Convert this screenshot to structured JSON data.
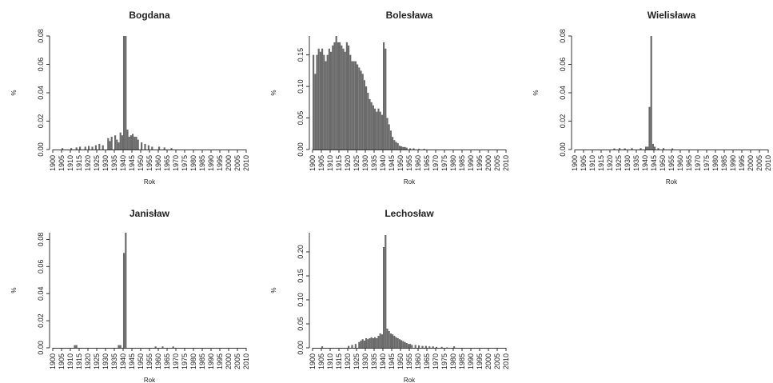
{
  "charts": [
    {
      "type": "bar",
      "title": "Bogdana",
      "xlabel": "Rok",
      "ylabel": "%",
      "xlim": [
        1900,
        2010
      ],
      "ylim": [
        0,
        0.08
      ],
      "yticks": [
        "0.00",
        "0.02",
        "0.04",
        "0.06",
        "0.08"
      ],
      "xticks": [
        "1900",
        "1905",
        "1910",
        "1915",
        "1920",
        "1925",
        "1930",
        "1935",
        "1940",
        "1945",
        "1950",
        "1955",
        "1960",
        "1965",
        "1970",
        "1975",
        "1980",
        "1985",
        "1990",
        "1995",
        "2000",
        "2005",
        "2010"
      ],
      "bar_color": "#6b6b6b",
      "series": [
        {
          "x": 1905,
          "y": 0.001
        },
        {
          "x": 1910,
          "y": 0.001
        },
        {
          "x": 1913,
          "y": 0.0015
        },
        {
          "x": 1915,
          "y": 0.002
        },
        {
          "x": 1918,
          "y": 0.002
        },
        {
          "x": 1920,
          "y": 0.0025
        },
        {
          "x": 1922,
          "y": 0.002
        },
        {
          "x": 1924,
          "y": 0.003
        },
        {
          "x": 1926,
          "y": 0.004
        },
        {
          "x": 1928,
          "y": 0.003
        },
        {
          "x": 1931,
          "y": 0.008
        },
        {
          "x": 1932,
          "y": 0.006
        },
        {
          "x": 1933,
          "y": 0.009
        },
        {
          "x": 1935,
          "y": 0.01
        },
        {
          "x": 1936,
          "y": 0.007
        },
        {
          "x": 1937,
          "y": 0.005
        },
        {
          "x": 1938,
          "y": 0.012
        },
        {
          "x": 1939,
          "y": 0.01
        },
        {
          "x": 1940,
          "y": 0.09
        },
        {
          "x": 1941,
          "y": 0.08
        },
        {
          "x": 1942,
          "y": 0.014
        },
        {
          "x": 1943,
          "y": 0.009
        },
        {
          "x": 1944,
          "y": 0.01
        },
        {
          "x": 1945,
          "y": 0.011
        },
        {
          "x": 1946,
          "y": 0.009
        },
        {
          "x": 1947,
          "y": 0.009
        },
        {
          "x": 1948,
          "y": 0.007
        },
        {
          "x": 1950,
          "y": 0.005
        },
        {
          "x": 1952,
          "y": 0.004
        },
        {
          "x": 1954,
          "y": 0.003
        },
        {
          "x": 1956,
          "y": 0.002
        },
        {
          "x": 1960,
          "y": 0.002
        },
        {
          "x": 1963,
          "y": 0.0015
        },
        {
          "x": 1967,
          "y": 0.001
        }
      ]
    },
    {
      "type": "bar",
      "title": "Bolesława",
      "xlabel": "Rok",
      "ylabel": "%",
      "xlim": [
        1900,
        2010
      ],
      "ylim": [
        0,
        0.18
      ],
      "yticks": [
        "0.00",
        "0.05",
        "0.10",
        "0.15"
      ],
      "xticks": [
        "1900",
        "1905",
        "1910",
        "1915",
        "1920",
        "1925",
        "1930",
        "1935",
        "1940",
        "1945",
        "1950",
        "1955",
        "1960",
        "1965",
        "1970",
        "1975",
        "1980",
        "1985",
        "1990",
        "1995",
        "2000",
        "2005",
        "2010"
      ],
      "bar_color": "#6b6b6b",
      "series": [
        {
          "x": 1900,
          "y": 0.15
        },
        {
          "x": 1901,
          "y": 0.12
        },
        {
          "x": 1902,
          "y": 0.15
        },
        {
          "x": 1903,
          "y": 0.16
        },
        {
          "x": 1904,
          "y": 0.155
        },
        {
          "x": 1905,
          "y": 0.16
        },
        {
          "x": 1906,
          "y": 0.15
        },
        {
          "x": 1907,
          "y": 0.14
        },
        {
          "x": 1908,
          "y": 0.15
        },
        {
          "x": 1909,
          "y": 0.16
        },
        {
          "x": 1910,
          "y": 0.155
        },
        {
          "x": 1911,
          "y": 0.165
        },
        {
          "x": 1912,
          "y": 0.17
        },
        {
          "x": 1913,
          "y": 0.185
        },
        {
          "x": 1914,
          "y": 0.17
        },
        {
          "x": 1915,
          "y": 0.17
        },
        {
          "x": 1916,
          "y": 0.165
        },
        {
          "x": 1917,
          "y": 0.16
        },
        {
          "x": 1918,
          "y": 0.155
        },
        {
          "x": 1919,
          "y": 0.17
        },
        {
          "x": 1920,
          "y": 0.165
        },
        {
          "x": 1921,
          "y": 0.15
        },
        {
          "x": 1922,
          "y": 0.14
        },
        {
          "x": 1923,
          "y": 0.14
        },
        {
          "x": 1924,
          "y": 0.14
        },
        {
          "x": 1925,
          "y": 0.135
        },
        {
          "x": 1926,
          "y": 0.13
        },
        {
          "x": 1927,
          "y": 0.125
        },
        {
          "x": 1928,
          "y": 0.12
        },
        {
          "x": 1929,
          "y": 0.11
        },
        {
          "x": 1930,
          "y": 0.1
        },
        {
          "x": 1931,
          "y": 0.09
        },
        {
          "x": 1932,
          "y": 0.08
        },
        {
          "x": 1933,
          "y": 0.075
        },
        {
          "x": 1934,
          "y": 0.07
        },
        {
          "x": 1935,
          "y": 0.065
        },
        {
          "x": 1936,
          "y": 0.06
        },
        {
          "x": 1937,
          "y": 0.065
        },
        {
          "x": 1938,
          "y": 0.06
        },
        {
          "x": 1939,
          "y": 0.055
        },
        {
          "x": 1940,
          "y": 0.17
        },
        {
          "x": 1941,
          "y": 0.16
        },
        {
          "x": 1942,
          "y": 0.05
        },
        {
          "x": 1943,
          "y": 0.04
        },
        {
          "x": 1944,
          "y": 0.03
        },
        {
          "x": 1945,
          "y": 0.02
        },
        {
          "x": 1946,
          "y": 0.015
        },
        {
          "x": 1947,
          "y": 0.012
        },
        {
          "x": 1948,
          "y": 0.01
        },
        {
          "x": 1949,
          "y": 0.006
        },
        {
          "x": 1950,
          "y": 0.005
        },
        {
          "x": 1951,
          "y": 0.004
        },
        {
          "x": 1952,
          "y": 0.004
        },
        {
          "x": 1953,
          "y": 0.003
        },
        {
          "x": 1955,
          "y": 0.002
        },
        {
          "x": 1957,
          "y": 0.002
        },
        {
          "x": 1960,
          "y": 0.001
        },
        {
          "x": 1963,
          "y": 0.001
        }
      ]
    },
    {
      "type": "bar",
      "title": "Wielisława",
      "xlabel": "Rok",
      "ylabel": "%",
      "xlim": [
        1900,
        2010
      ],
      "ylim": [
        0,
        0.08
      ],
      "yticks": [
        "0.00",
        "0.02",
        "0.04",
        "0.06",
        "0.08"
      ],
      "xticks": [
        "1900",
        "1905",
        "1910",
        "1915",
        "1920",
        "1925",
        "1930",
        "1935",
        "1940",
        "1945",
        "1950",
        "1955",
        "1960",
        "1965",
        "1970",
        "1975",
        "1980",
        "1985",
        "1990",
        "1995",
        "2000",
        "2005",
        "2010"
      ],
      "bar_color": "#6b6b6b",
      "series": [
        {
          "x": 1922,
          "y": 0.0008
        },
        {
          "x": 1925,
          "y": 0.001
        },
        {
          "x": 1928,
          "y": 0.0008
        },
        {
          "x": 1932,
          "y": 0.001
        },
        {
          "x": 1937,
          "y": 0.001
        },
        {
          "x": 1940,
          "y": 0.002
        },
        {
          "x": 1941,
          "y": 0.002
        },
        {
          "x": 1942,
          "y": 0.03
        },
        {
          "x": 1943,
          "y": 0.08
        },
        {
          "x": 1944,
          "y": 0.004
        },
        {
          "x": 1945,
          "y": 0.002
        },
        {
          "x": 1947,
          "y": 0.001
        },
        {
          "x": 1950,
          "y": 0.001
        },
        {
          "x": 1955,
          "y": 0.0008
        }
      ]
    },
    {
      "type": "bar",
      "title": "Janisław",
      "xlabel": "Rok",
      "ylabel": "%",
      "xlim": [
        1900,
        2010
      ],
      "ylim": [
        0,
        0.085
      ],
      "yticks": [
        "0.00",
        "0.02",
        "0.04",
        "0.06",
        "0.08"
      ],
      "xticks": [
        "1900",
        "1905",
        "1910",
        "1915",
        "1920",
        "1925",
        "1930",
        "1935",
        "1940",
        "1945",
        "1950",
        "1955",
        "1960",
        "1965",
        "1970",
        "1975",
        "1980",
        "1985",
        "1990",
        "1995",
        "2000",
        "2005",
        "2010"
      ],
      "bar_color": "#6b6b6b",
      "series": [
        {
          "x": 1912,
          "y": 0.002
        },
        {
          "x": 1913,
          "y": 0.002
        },
        {
          "x": 1937,
          "y": 0.002
        },
        {
          "x": 1938,
          "y": 0.002
        },
        {
          "x": 1940,
          "y": 0.07
        },
        {
          "x": 1941,
          "y": 0.085
        },
        {
          "x": 1958,
          "y": 0.001
        },
        {
          "x": 1962,
          "y": 0.001
        },
        {
          "x": 1968,
          "y": 0.001
        }
      ]
    },
    {
      "type": "bar",
      "title": "Lechosław",
      "xlabel": "Rok",
      "ylabel": "%",
      "xlim": [
        1900,
        2010
      ],
      "ylim": [
        0,
        0.24
      ],
      "yticks": [
        "0.00",
        "0.05",
        "0.10",
        "0.15",
        "0.20"
      ],
      "xticks": [
        "1900",
        "1905",
        "1910",
        "1915",
        "1920",
        "1925",
        "1930",
        "1935",
        "1940",
        "1945",
        "1950",
        "1955",
        "1960",
        "1965",
        "1970",
        "1975",
        "1980",
        "1985",
        "1990",
        "1995",
        "2000",
        "2005",
        "2010"
      ],
      "bar_color": "#6b6b6b",
      "series": [
        {
          "x": 1905,
          "y": 0.003
        },
        {
          "x": 1920,
          "y": 0.004
        },
        {
          "x": 1922,
          "y": 0.006
        },
        {
          "x": 1924,
          "y": 0.008
        },
        {
          "x": 1926,
          "y": 0.012
        },
        {
          "x": 1927,
          "y": 0.015
        },
        {
          "x": 1928,
          "y": 0.018
        },
        {
          "x": 1929,
          "y": 0.015
        },
        {
          "x": 1930,
          "y": 0.02
        },
        {
          "x": 1931,
          "y": 0.018
        },
        {
          "x": 1932,
          "y": 0.02
        },
        {
          "x": 1933,
          "y": 0.022
        },
        {
          "x": 1934,
          "y": 0.02
        },
        {
          "x": 1935,
          "y": 0.022
        },
        {
          "x": 1936,
          "y": 0.02
        },
        {
          "x": 1937,
          "y": 0.025
        },
        {
          "x": 1938,
          "y": 0.03
        },
        {
          "x": 1939,
          "y": 0.028
        },
        {
          "x": 1940,
          "y": 0.21
        },
        {
          "x": 1941,
          "y": 0.235
        },
        {
          "x": 1942,
          "y": 0.04
        },
        {
          "x": 1943,
          "y": 0.035
        },
        {
          "x": 1944,
          "y": 0.03
        },
        {
          "x": 1945,
          "y": 0.028
        },
        {
          "x": 1946,
          "y": 0.025
        },
        {
          "x": 1947,
          "y": 0.022
        },
        {
          "x": 1948,
          "y": 0.02
        },
        {
          "x": 1949,
          "y": 0.018
        },
        {
          "x": 1950,
          "y": 0.016
        },
        {
          "x": 1951,
          "y": 0.014
        },
        {
          "x": 1952,
          "y": 0.012
        },
        {
          "x": 1953,
          "y": 0.01
        },
        {
          "x": 1954,
          "y": 0.008
        },
        {
          "x": 1955,
          "y": 0.008
        },
        {
          "x": 1956,
          "y": 0.006
        },
        {
          "x": 1958,
          "y": 0.006
        },
        {
          "x": 1960,
          "y": 0.005
        },
        {
          "x": 1962,
          "y": 0.004
        },
        {
          "x": 1964,
          "y": 0.004
        },
        {
          "x": 1966,
          "y": 0.003
        },
        {
          "x": 1968,
          "y": 0.003
        },
        {
          "x": 1970,
          "y": 0.002
        },
        {
          "x": 1973,
          "y": 0.002
        },
        {
          "x": 1976,
          "y": 0.001
        },
        {
          "x": 1980,
          "y": 0.003
        }
      ]
    }
  ]
}
